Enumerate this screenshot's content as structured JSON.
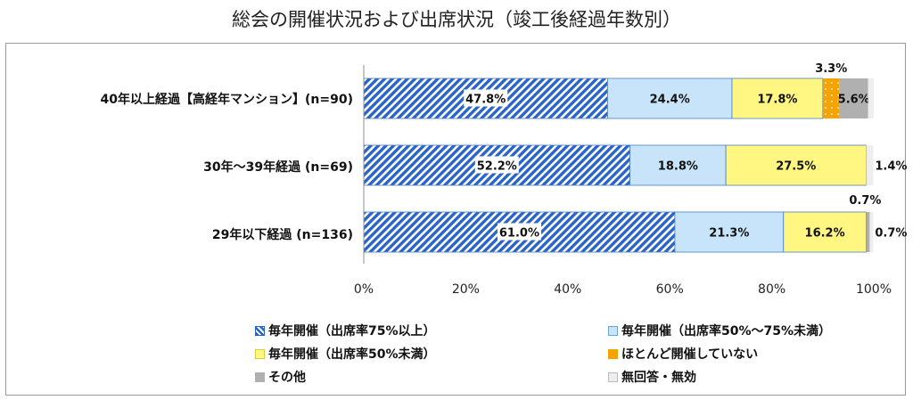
{
  "chart_data": {
    "type": "bar",
    "orientation": "horizontal",
    "stacked": true,
    "title": "総会の開催状況および出席状況（竣工後経過年数別）",
    "categories": [
      "40年以上経過【高経年マンション】(n=90)",
      "30年～39年経過 (n=69)",
      "29年以下経過 (n=136)"
    ],
    "series": [
      {
        "name": "毎年開催（出席率75%以上）",
        "values": [
          47.8,
          52.2,
          61.0
        ],
        "labels": [
          "47.8%",
          "52.2%",
          "61.0%"
        ],
        "color": "#2a64c8",
        "pattern": "diagonal-hatch"
      },
      {
        "name": "毎年開催（出席率50%～75%未満）",
        "values": [
          24.4,
          18.8,
          21.3
        ],
        "labels": [
          "24.4%",
          "18.8%",
          "21.3%"
        ],
        "color": "#c7e4fa"
      },
      {
        "name": "毎年開催（出席率50%未満）",
        "values": [
          17.8,
          27.5,
          16.2
        ],
        "labels": [
          "17.8%",
          "27.5%",
          "16.2%"
        ],
        "color": "#fff782"
      },
      {
        "name": "ほとんど開催していない",
        "values": [
          3.3,
          0.0,
          0.0
        ],
        "labels": [
          "3.3%",
          "",
          ""
        ],
        "color": "#f5a300"
      },
      {
        "name": "その他",
        "values": [
          5.6,
          0.0,
          0.7
        ],
        "labels": [
          "5.6%",
          "",
          "0.7%"
        ],
        "color": "#b0b0b0"
      },
      {
        "name": "無回答・無効",
        "values": [
          1.1,
          1.4,
          0.7
        ],
        "labels": [
          "",
          "1.4%",
          "0.7%"
        ],
        "color": "#eeeeee"
      }
    ],
    "x_ticks": [
      "0%",
      "20%",
      "40%",
      "60%",
      "80%",
      "100%"
    ],
    "xlim": [
      0,
      100
    ],
    "legend_position": "bottom",
    "grid": false
  }
}
